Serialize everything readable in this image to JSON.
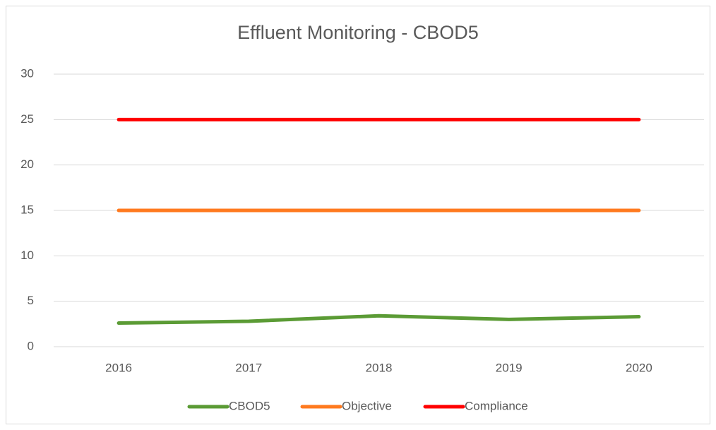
{
  "chart_data": {
    "type": "line",
    "title": "Effluent Monitoring - CBOD5",
    "categories": [
      "2016",
      "2017",
      "2018",
      "2019",
      "2020"
    ],
    "series": [
      {
        "name": "CBOD5",
        "color": "#5b9b35",
        "values": [
          2.6,
          2.8,
          3.4,
          3.0,
          3.3
        ]
      },
      {
        "name": "Objective",
        "color": "#ff7a1f",
        "values": [
          15,
          15,
          15,
          15,
          15
        ]
      },
      {
        "name": "Compliance",
        "color": "#ff0000",
        "values": [
          25,
          25,
          25,
          25,
          25
        ]
      }
    ],
    "ylim": [
      0,
      30
    ],
    "yticks": [
      0,
      5,
      10,
      15,
      20,
      25,
      30
    ],
    "grid": true,
    "legend": "bottom"
  }
}
